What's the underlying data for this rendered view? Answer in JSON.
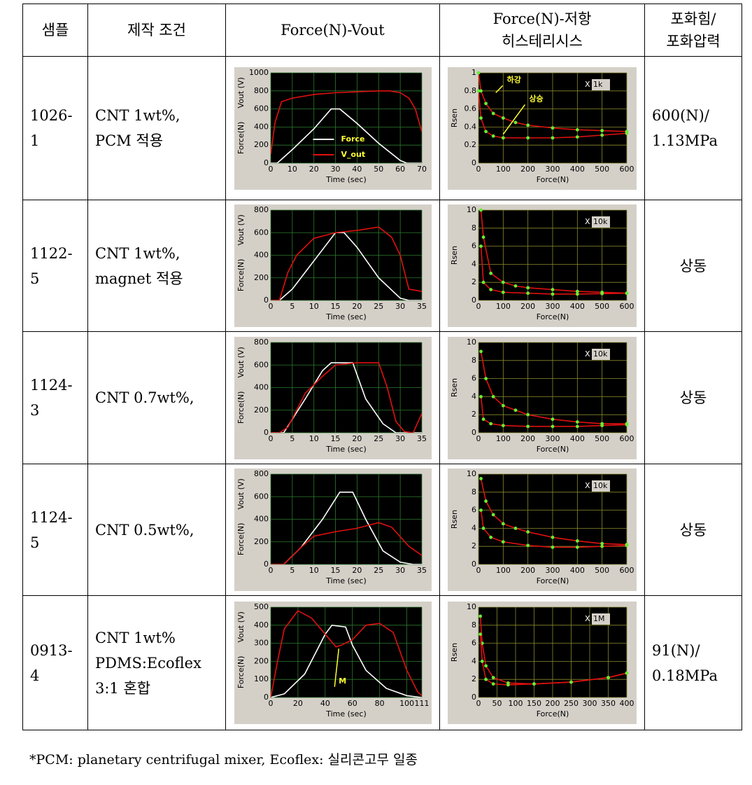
{
  "table": {
    "header": [
      [
        "샘플"
      ],
      [
        "제작 조건"
      ],
      [
        "Force(N)-Vout"
      ],
      [
        "Force(N)-저항",
        "히스테리시스"
      ],
      [
        "포화힘/",
        "포화압력"
      ]
    ],
    "rows": [
      {
        "sample": [
          "1026-",
          "1"
        ],
        "condition": [
          "CNT 1wt%,",
          "PCM 적용"
        ],
        "vout": {
          "type": "line",
          "xlabel": "Time (sec)",
          "ylabel": [
            "Force(N)",
            "Vout (V)"
          ],
          "xlim": [
            0,
            70
          ],
          "xticks": [
            0,
            10,
            20,
            30,
            40,
            50,
            60,
            70
          ],
          "ylim": [
            0,
            1000
          ],
          "yticks": [
            0,
            200,
            400,
            600,
            800,
            1000
          ],
          "series": [
            {
              "name": "Force",
              "color": "#ffffff",
              "x": [
                0,
                3,
                10,
                20,
                28,
                32,
                40,
                50,
                60,
                63,
                70
              ],
              "values": [
                0,
                0,
                150,
                380,
                600,
                600,
                440,
                220,
                30,
                0,
                0
              ]
            },
            {
              "name": "V_out",
              "color": "#e01010",
              "x": [
                0,
                2,
                5,
                10,
                20,
                30,
                40,
                50,
                55,
                60,
                64,
                67,
                70
              ],
              "values": [
                100,
                450,
                680,
                720,
                760,
                780,
                790,
                800,
                800,
                780,
                720,
                600,
                350
              ]
            }
          ]
        },
        "hysteresis": {
          "type": "line",
          "xlabel": "Force(N)",
          "ylabel": "Rsen",
          "scale": [
            "X",
            "1k"
          ],
          "xlim": [
            0,
            600
          ],
          "xticks": [
            0,
            100,
            200,
            300,
            400,
            500,
            600
          ],
          "ylim": [
            0,
            1
          ],
          "yticks": [
            0,
            0.2,
            0.4,
            0.6,
            0.8,
            1
          ],
          "annotations": [
            "하강",
            "상승"
          ],
          "series": [
            {
              "color": "#e01010",
              "marker_color": "#66ee33",
              "x": [
                0,
                10,
                30,
                60,
                100,
                150,
                200,
                300,
                400,
                500,
                600
              ],
              "values": [
                1,
                0.8,
                0.66,
                0.55,
                0.5,
                0.45,
                0.42,
                0.39,
                0.37,
                0.36,
                0.35
              ]
            },
            {
              "color": "#e01010",
              "marker_color": "#66ee33",
              "x": [
                0,
                10,
                30,
                60,
                100,
                200,
                300,
                400,
                500,
                600
              ],
              "values": [
                0.8,
                0.5,
                0.35,
                0.3,
                0.28,
                0.28,
                0.28,
                0.29,
                0.31,
                0.33
              ]
            }
          ]
        },
        "saturation": [
          "600(N)/",
          "1.13MPa"
        ]
      },
      {
        "sample": [
          "1122-",
          "5"
        ],
        "condition": [
          "CNT 1wt%,",
          "magnet 적용"
        ],
        "vout": {
          "type": "line",
          "xlabel": "Time (sec)",
          "ylabel": [
            "Force(N)",
            "Vout (V)"
          ],
          "xlim": [
            0,
            35
          ],
          "xticks": [
            0,
            5,
            10,
            15,
            20,
            25,
            30,
            35
          ],
          "ylim": [
            0,
            800
          ],
          "yticks": [
            0,
            200,
            400,
            600,
            800
          ],
          "series": [
            {
              "color": "#ffffff",
              "x": [
                0,
                2,
                5,
                10,
                15,
                17,
                20,
                25,
                30,
                32,
                35
              ],
              "values": [
                0,
                0,
                100,
                350,
                600,
                600,
                470,
                200,
                20,
                0,
                0
              ]
            },
            {
              "color": "#e01010",
              "x": [
                0,
                2,
                4,
                6,
                10,
                15,
                20,
                25,
                28,
                30,
                32,
                35
              ],
              "values": [
                0,
                0,
                250,
                400,
                550,
                600,
                620,
                650,
                560,
                400,
                100,
                80
              ]
            }
          ]
        },
        "hysteresis": {
          "type": "line",
          "xlabel": "Force(N)",
          "ylabel": "Rsen",
          "scale": [
            "X",
            "10k"
          ],
          "xlim": [
            0,
            600
          ],
          "xticks": [
            0,
            100,
            200,
            300,
            400,
            500,
            600
          ],
          "ylim": [
            0,
            10
          ],
          "yticks": [
            0,
            2,
            4,
            6,
            8,
            10
          ],
          "series": [
            {
              "color": "#e01010",
              "marker_color": "#66ee33",
              "x": [
                10,
                20,
                50,
                100,
                150,
                200,
                300,
                400,
                500,
                600
              ],
              "values": [
                10,
                7,
                3,
                2,
                1.6,
                1.4,
                1.2,
                1,
                0.9,
                0.8
              ]
            },
            {
              "color": "#e01010",
              "marker_color": "#66ee33",
              "x": [
                10,
                20,
                50,
                100,
                200,
                300,
                400,
                500,
                600
              ],
              "values": [
                6,
                2,
                1.2,
                0.9,
                0.8,
                0.7,
                0.7,
                0.75,
                0.8
              ]
            }
          ]
        },
        "saturation": [
          "상동"
        ]
      },
      {
        "sample": [
          "1124-",
          "3"
        ],
        "condition": [
          "CNT 0.7wt%,"
        ],
        "vout": {
          "type": "line",
          "xlabel": "Time (sec)",
          "ylabel": [
            "Force(N)",
            "Vout (V)"
          ],
          "xlim": [
            0,
            35
          ],
          "xticks": [
            0,
            5,
            10,
            15,
            20,
            25,
            30,
            35
          ],
          "ylim": [
            0,
            800
          ],
          "yticks": [
            0,
            200,
            400,
            600,
            800
          ],
          "series": [
            {
              "color": "#ffffff",
              "x": [
                0,
                3,
                8,
                12,
                14,
                19,
                22,
                26,
                29,
                35
              ],
              "values": [
                0,
                0,
                300,
                550,
                620,
                620,
                300,
                80,
                0,
                0
              ]
            },
            {
              "color": "#e01010",
              "x": [
                0,
                2,
                4,
                8,
                12,
                15,
                20,
                25,
                27,
                29,
                31,
                33,
                35
              ],
              "values": [
                0,
                0,
                50,
                350,
                500,
                600,
                620,
                620,
                400,
                100,
                10,
                0,
                170
              ]
            }
          ]
        },
        "hysteresis": {
          "type": "line",
          "xlabel": "Force(N)",
          "ylabel": "Rsen",
          "scale": [
            "X",
            "10k"
          ],
          "xlim": [
            0,
            600
          ],
          "xticks": [
            0,
            100,
            200,
            300,
            400,
            500,
            600
          ],
          "ylim": [
            0,
            10
          ],
          "yticks": [
            0,
            2,
            4,
            6,
            8,
            10
          ],
          "series": [
            {
              "color": "#e01010",
              "marker_color": "#66ee33",
              "x": [
                10,
                30,
                60,
                100,
                150,
                200,
                300,
                400,
                500,
                600
              ],
              "values": [
                9,
                6,
                4,
                3,
                2.5,
                2,
                1.5,
                1.2,
                1,
                1
              ]
            },
            {
              "color": "#e01010",
              "marker_color": "#66ee33",
              "x": [
                10,
                20,
                50,
                100,
                200,
                300,
                400,
                500,
                600
              ],
              "values": [
                4,
                1.5,
                1,
                0.8,
                0.7,
                0.7,
                0.7,
                0.8,
                0.9
              ]
            }
          ]
        },
        "saturation": [
          "상동"
        ]
      },
      {
        "sample": [
          "1124-",
          "5"
        ],
        "condition": [
          "CNT 0.5wt%,"
        ],
        "vout": {
          "type": "line",
          "xlabel": "Time (sec)",
          "ylabel": [
            "Force(N)",
            "Vout (V)"
          ],
          "xlim": [
            0,
            35
          ],
          "xticks": [
            0,
            5,
            10,
            15,
            20,
            25,
            30,
            35
          ],
          "ylim": [
            0,
            800
          ],
          "yticks": [
            0,
            200,
            400,
            600,
            800
          ],
          "series": [
            {
              "color": "#ffffff",
              "x": [
                0,
                3,
                7,
                12,
                16,
                19,
                22,
                26,
                30,
                33,
                35
              ],
              "values": [
                0,
                0,
                150,
                400,
                640,
                640,
                400,
                120,
                20,
                0,
                0
              ]
            },
            {
              "color": "#e01010",
              "x": [
                0,
                3,
                7,
                10,
                15,
                20,
                25,
                28,
                32,
                35
              ],
              "values": [
                0,
                0,
                150,
                250,
                290,
                320,
                370,
                330,
                160,
                80
              ]
            }
          ]
        },
        "hysteresis": {
          "type": "line",
          "xlabel": "Force(N)",
          "ylabel": "Rsen",
          "scale": [
            "X",
            "10k"
          ],
          "xlim": [
            0,
            600
          ],
          "xticks": [
            0,
            100,
            200,
            300,
            400,
            500,
            600
          ],
          "ylim": [
            0,
            10
          ],
          "yticks": [
            0,
            2,
            4,
            6,
            8,
            10
          ],
          "series": [
            {
              "color": "#e01010",
              "marker_color": "#66ee33",
              "x": [
                10,
                30,
                60,
                100,
                150,
                200,
                300,
                400,
                500,
                600
              ],
              "values": [
                9.5,
                7,
                5.5,
                4.5,
                4,
                3.6,
                3,
                2.6,
                2.3,
                2.2
              ]
            },
            {
              "color": "#e01010",
              "marker_color": "#66ee33",
              "x": [
                10,
                20,
                50,
                100,
                200,
                300,
                400,
                500,
                600
              ],
              "values": [
                6,
                4,
                3,
                2.5,
                2.1,
                1.9,
                1.9,
                2,
                2.1
              ]
            }
          ]
        },
        "saturation": [
          "상동"
        ]
      },
      {
        "sample": [
          "0913-",
          "4"
        ],
        "condition": [
          "CNT 1wt%",
          "PDMS:Ecoflex",
          "3:1 혼합"
        ],
        "vout": {
          "type": "line",
          "xlabel": "Time (sec)",
          "ylabel": [
            "Force(N)",
            "Vout (V)"
          ],
          "xlim": [
            0,
            111
          ],
          "xticks": [
            0,
            20,
            40,
            60,
            80,
            100,
            111
          ],
          "ylim": [
            0,
            500
          ],
          "yticks": [
            0,
            100,
            200,
            300,
            400,
            500
          ],
          "annotations": [
            "M"
          ],
          "series": [
            {
              "color": "#ffffff",
              "x": [
                0,
                10,
                25,
                40,
                45,
                55,
                60,
                70,
                85,
                100,
                111
              ],
              "values": [
                0,
                20,
                130,
                350,
                400,
                390,
                290,
                150,
                50,
                10,
                0
              ]
            },
            {
              "color": "#e01010",
              "x": [
                0,
                5,
                10,
                20,
                30,
                40,
                48,
                52,
                60,
                70,
                80,
                90,
                100,
                108,
                111
              ],
              "values": [
                0,
                200,
                380,
                480,
                440,
                350,
                280,
                290,
                320,
                400,
                410,
                360,
                150,
                30,
                10
              ]
            }
          ]
        },
        "hysteresis": {
          "type": "line",
          "xlabel": "Force(N)",
          "ylabel": "Rsen",
          "scale": [
            "X",
            "1M"
          ],
          "xlim": [
            0,
            400
          ],
          "xticks": [
            0,
            50,
            100,
            150,
            200,
            250,
            300,
            350,
            400
          ],
          "ylim": [
            0,
            10
          ],
          "yticks": [
            0,
            2,
            4,
            6,
            8,
            10
          ],
          "series": [
            {
              "color": "#e01010",
              "marker_color": "#66ee33",
              "x": [
                5,
                10,
                20,
                40,
                80,
                150,
                250,
                350,
                400
              ],
              "values": [
                9,
                6,
                3.5,
                2.2,
                1.6,
                1.5,
                1.7,
                2.2,
                2.7
              ]
            },
            {
              "color": "#e01010",
              "marker_color": "#66ee33",
              "x": [
                5,
                10,
                20,
                40,
                80,
                150,
                250,
                350,
                400
              ],
              "values": [
                7,
                4,
                2,
                1.5,
                1.4,
                1.5,
                1.7,
                2.2,
                2.7
              ]
            }
          ]
        },
        "saturation": [
          "91(N)/",
          "0.18MPa"
        ]
      }
    ]
  },
  "footnote": "*PCM: planetary centrifugal mixer, Ecoflex: 실리콘고무 일종"
}
